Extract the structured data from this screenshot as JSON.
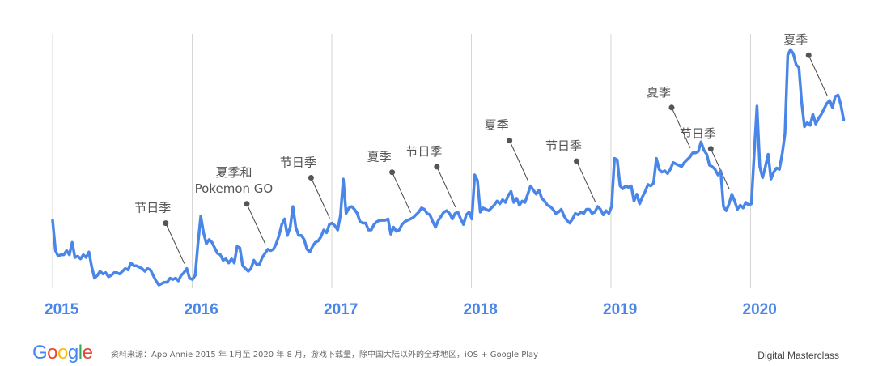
{
  "chart_data": {
    "type": "line",
    "x_start": "2015",
    "x_end": "2020-08",
    "year_ticks": [
      "2015",
      "2016",
      "2017",
      "2018",
      "2019",
      "2020"
    ],
    "y_axis_visible": false,
    "grid": "vertical lines at each year",
    "line_color": "#4a86e8",
    "values": [
      47,
      25,
      21,
      22,
      22,
      25,
      22,
      31,
      20,
      21,
      19,
      22,
      20,
      24,
      13,
      5,
      7,
      10,
      8,
      9,
      6,
      7,
      9,
      9,
      8,
      10,
      12,
      11,
      16,
      14,
      14,
      13,
      12,
      10,
      12,
      11,
      7,
      3,
      0,
      1,
      2,
      2,
      5,
      4,
      5,
      3,
      7,
      9,
      12,
      5,
      4,
      7,
      30,
      50,
      38,
      30,
      33,
      31,
      27,
      23,
      22,
      18,
      19,
      16,
      19,
      16,
      28,
      27,
      14,
      12,
      10,
      12,
      18,
      15,
      15,
      20,
      23,
      26,
      25,
      26,
      30,
      36,
      44,
      48,
      36,
      42,
      57,
      42,
      36,
      36,
      33,
      26,
      24,
      28,
      31,
      32,
      35,
      40,
      38,
      44,
      45,
      43,
      40,
      51,
      77,
      52,
      56,
      57,
      55,
      52,
      46,
      45,
      45,
      40,
      40,
      44,
      46,
      47,
      47,
      47,
      48,
      37,
      42,
      39,
      40,
      44,
      46,
      47,
      48,
      49,
      51,
      53,
      56,
      55,
      52,
      51,
      46,
      42,
      47,
      50,
      53,
      54,
      52,
      48,
      52,
      53,
      48,
      44,
      51,
      53,
      48,
      80,
      76,
      53,
      56,
      55,
      54,
      56,
      58,
      61,
      59,
      62,
      60,
      65,
      68,
      60,
      63,
      58,
      61,
      60,
      66,
      72,
      69,
      66,
      69,
      63,
      61,
      58,
      57,
      55,
      52,
      53,
      55,
      50,
      47,
      45,
      48,
      52,
      51,
      53,
      52,
      55,
      55,
      52,
      53,
      57,
      55,
      51,
      54,
      52,
      57,
      92,
      91,
      72,
      70,
      72,
      71,
      72,
      61,
      66,
      59,
      64,
      68,
      73,
      72,
      74,
      92,
      84,
      82,
      83,
      81,
      84,
      89,
      88,
      87,
      86,
      89,
      91,
      93,
      96,
      96,
      97,
      104,
      98,
      95,
      87,
      86,
      84,
      80,
      83,
      57,
      54,
      59,
      66,
      61,
      55,
      58,
      56,
      60,
      58,
      59,
      96,
      130,
      86,
      78,
      86,
      95,
      77,
      82,
      85,
      84,
      95,
      110,
      167,
      171,
      168,
      160,
      158,
      132,
      115,
      118,
      116,
      124,
      117,
      121,
      124,
      128,
      132,
      134,
      129,
      137,
      138,
      131,
      120
    ],
    "annotations": [
      {
        "lines": [
          "节日季"
        ],
        "at": "2015-12"
      },
      {
        "lines": [
          "夏季和",
          "Pokemon GO"
        ],
        "at": "2016-07"
      },
      {
        "lines": [
          "节日季"
        ],
        "at": "2016-12"
      },
      {
        "lines": [
          "夏季"
        ],
        "at": "2017-07"
      },
      {
        "lines": [
          "节日季"
        ],
        "at": "2017-12"
      },
      {
        "lines": [
          "夏季"
        ],
        "at": "2018-07"
      },
      {
        "lines": [
          "节日季"
        ],
        "at": "2018-12"
      },
      {
        "lines": [
          "夏季"
        ],
        "at": "2019-07"
      },
      {
        "lines": [
          "节日季"
        ],
        "at": "2019-12"
      },
      {
        "lines": [
          "夏季"
        ],
        "at": "2020-07"
      }
    ]
  },
  "footer": {
    "logo": "Google",
    "logo_colors": [
      "#4285f4",
      "#ea4335",
      "#fbbc05",
      "#4285f4",
      "#34a853",
      "#ea4335"
    ],
    "source": "资料来源：App Annie 2015 年 1月至 2020 年 8 月，游戏下载量，除中国大陆以外的全球地区，iOS + Google Play",
    "brand": "Digital Masterclass"
  }
}
